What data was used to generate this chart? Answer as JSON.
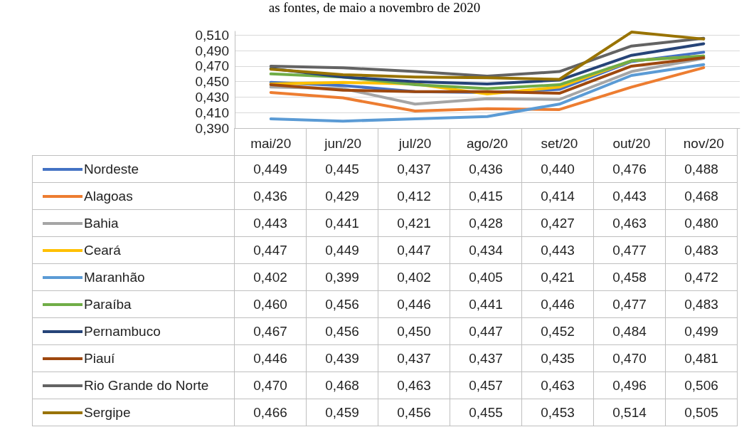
{
  "chart_data": {
    "type": "line",
    "title": "as fontes, de maio a novembro de 2020",
    "categories": [
      "mai/20",
      "jun/20",
      "jul/20",
      "ago/20",
      "set/20",
      "out/20",
      "nov/20"
    ],
    "ylim": [
      0.39,
      0.515
    ],
    "yticks": [
      {
        "value": 0.39,
        "label": "0,390"
      },
      {
        "value": 0.41,
        "label": "0,410"
      },
      {
        "value": 0.43,
        "label": "0,430"
      },
      {
        "value": 0.45,
        "label": "0,450"
      },
      {
        "value": 0.47,
        "label": "0,470"
      },
      {
        "value": 0.49,
        "label": "0,490"
      },
      {
        "value": 0.51,
        "label": "0,510"
      }
    ],
    "grid": "y",
    "legend": "bottom",
    "marker": "none",
    "line_style": "solid",
    "series": [
      {
        "name": "Nordeste",
        "color": "#4472c4",
        "values": [
          0.449,
          0.445,
          0.437,
          0.436,
          0.44,
          0.476,
          0.488
        ],
        "value_labels": [
          "0,449",
          "0,445",
          "0,437",
          "0,436",
          "0,440",
          "0,476",
          "0,488"
        ]
      },
      {
        "name": "Alagoas",
        "color": "#ed7d31",
        "values": [
          0.436,
          0.429,
          0.412,
          0.415,
          0.414,
          0.443,
          0.468
        ],
        "value_labels": [
          "0,436",
          "0,429",
          "0,412",
          "0,415",
          "0,414",
          "0,443",
          "0,468"
        ]
      },
      {
        "name": "Bahia",
        "color": "#a5a5a5",
        "values": [
          0.443,
          0.441,
          0.421,
          0.428,
          0.427,
          0.463,
          0.48
        ],
        "value_labels": [
          "0,443",
          "0,441",
          "0,421",
          "0,428",
          "0,427",
          "0,463",
          "0,480"
        ]
      },
      {
        "name": "Ceará",
        "color": "#ffc000",
        "values": [
          0.447,
          0.449,
          0.447,
          0.434,
          0.443,
          0.477,
          0.483
        ],
        "value_labels": [
          "0,447",
          "0,449",
          "0,447",
          "0,434",
          "0,443",
          "0,477",
          "0,483"
        ]
      },
      {
        "name": "Maranhão",
        "color": "#5b9bd5",
        "values": [
          0.402,
          0.399,
          0.402,
          0.405,
          0.421,
          0.458,
          0.472
        ],
        "value_labels": [
          "0,402",
          "0,399",
          "0,402",
          "0,405",
          "0,421",
          "0,458",
          "0,472"
        ]
      },
      {
        "name": "Paraíba",
        "color": "#70ad47",
        "values": [
          0.46,
          0.456,
          0.446,
          0.441,
          0.446,
          0.477,
          0.483
        ],
        "value_labels": [
          "0,460",
          "0,456",
          "0,446",
          "0,441",
          "0,446",
          "0,477",
          "0,483"
        ]
      },
      {
        "name": "Pernambuco",
        "color": "#264478",
        "values": [
          0.467,
          0.456,
          0.45,
          0.447,
          0.452,
          0.484,
          0.499
        ],
        "value_labels": [
          "0,467",
          "0,456",
          "0,450",
          "0,447",
          "0,452",
          "0,484",
          "0,499"
        ]
      },
      {
        "name": "Piauí",
        "color": "#9e480e",
        "values": [
          0.446,
          0.439,
          0.437,
          0.437,
          0.435,
          0.47,
          0.481
        ],
        "value_labels": [
          "0,446",
          "0,439",
          "0,437",
          "0,437",
          "0,435",
          "0,470",
          "0,481"
        ]
      },
      {
        "name": "Rio Grande do Norte",
        "color": "#636363",
        "values": [
          0.47,
          0.468,
          0.463,
          0.457,
          0.463,
          0.496,
          0.506
        ],
        "value_labels": [
          "0,470",
          "0,468",
          "0,463",
          "0,457",
          "0,463",
          "0,496",
          "0,506"
        ]
      },
      {
        "name": "Sergipe",
        "color": "#997300",
        "values": [
          0.466,
          0.459,
          0.456,
          0.455,
          0.453,
          0.514,
          0.505
        ],
        "value_labels": [
          "0,466",
          "0,459",
          "0,456",
          "0,455",
          "0,453",
          "0,514",
          "0,505"
        ]
      }
    ]
  }
}
